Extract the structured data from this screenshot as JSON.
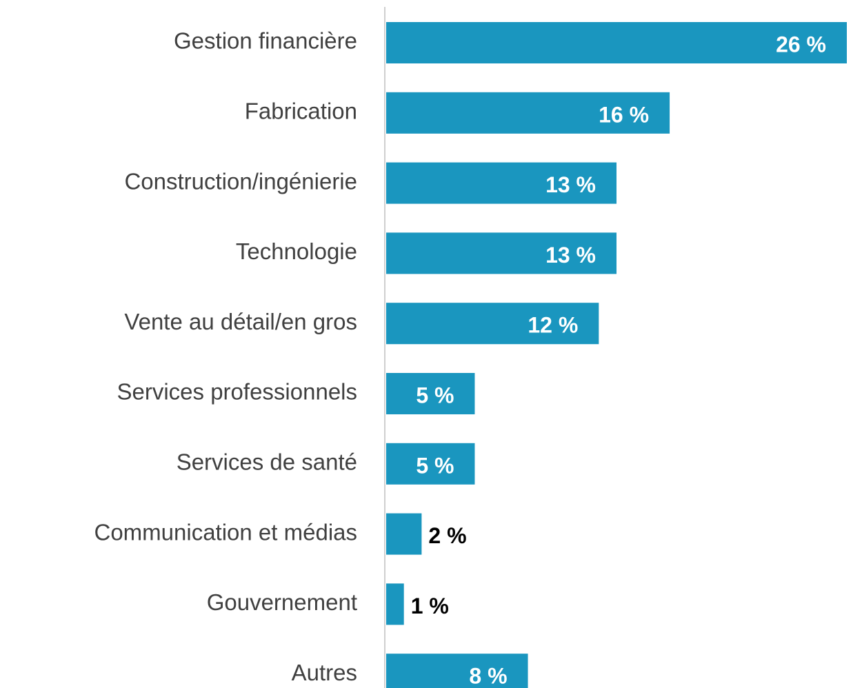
{
  "chart_data": {
    "type": "barh",
    "categories": [
      "Gestion financière",
      "Fabrication",
      "Construction/ingénierie",
      "Technologie",
      "Vente au détail/en gros",
      "Services professionnels",
      "Services de santé",
      "Communication et médias",
      "Gouvernement",
      "Autres"
    ],
    "values": [
      26,
      16,
      13,
      13,
      12,
      5,
      5,
      2,
      1,
      8
    ],
    "value_labels": [
      "26 %",
      "16 %",
      "13 %",
      "13 %",
      "12 %",
      "5 %",
      "5 %",
      "2 %",
      "1 %",
      "8 %"
    ],
    "color": "#1a96bf"
  }
}
